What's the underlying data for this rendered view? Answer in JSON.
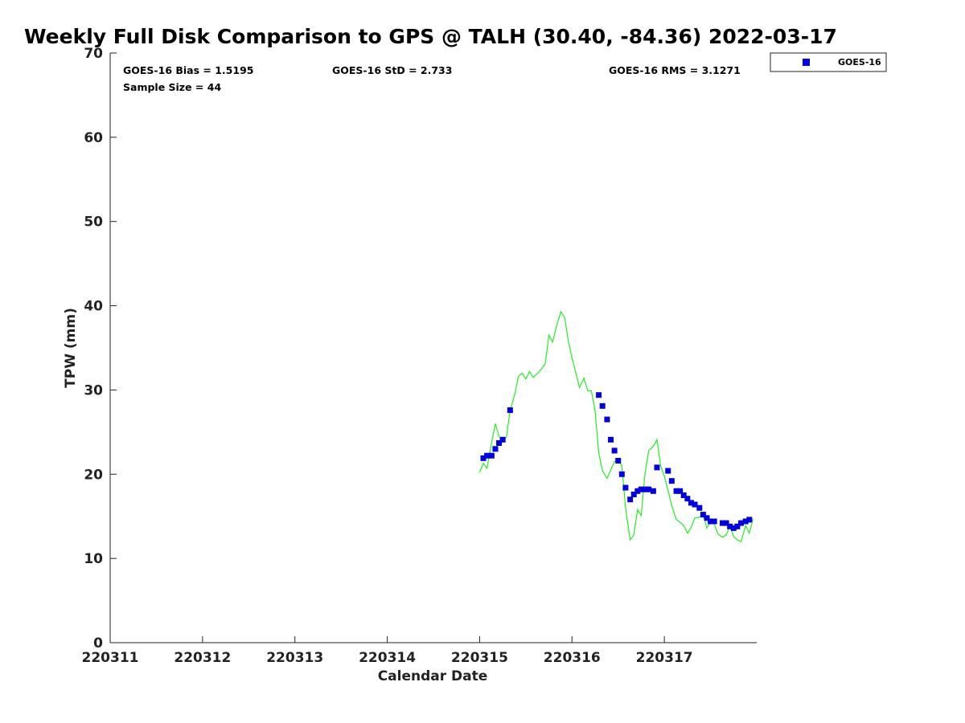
{
  "chart_data": {
    "type": "scatter",
    "title": "Weekly Full Disk Comparison to GPS @ TALH (30.40, -84.36) 2022-03-17",
    "xlabel": "Calendar Date",
    "ylabel": "TPW (mm)",
    "xlim": [
      220311,
      220318
    ],
    "ylim": [
      0,
      70
    ],
    "yticks": [
      0,
      10,
      20,
      30,
      40,
      50,
      60,
      70
    ],
    "xticks": [
      220311,
      220312,
      220313,
      220314,
      220315,
      220316,
      220317
    ],
    "grid": false,
    "legend_position": "top-right outside",
    "stats": {
      "bias": "GOES-16 Bias = 1.5195",
      "std": "GOES-16 StD = 2.733",
      "rms": "GOES-16 RMS = 3.1271",
      "sample_size": "Sample Size = 44"
    },
    "series": [
      {
        "name": "GOES-16",
        "kind": "scatter",
        "marker": "square",
        "color": "#0000dd",
        "points": [
          [
            220315.04,
            21.9
          ],
          [
            220315.08,
            22.2
          ],
          [
            220315.13,
            22.2
          ],
          [
            220315.17,
            23.0
          ],
          [
            220315.21,
            23.7
          ],
          [
            220315.25,
            24.1
          ],
          [
            220315.33,
            27.6
          ],
          [
            220316.29,
            29.4
          ],
          [
            220316.33,
            28.1
          ],
          [
            220316.38,
            26.5
          ],
          [
            220316.42,
            24.1
          ],
          [
            220316.46,
            22.8
          ],
          [
            220316.5,
            21.6
          ],
          [
            220316.54,
            20.0
          ],
          [
            220316.58,
            18.4
          ],
          [
            220316.63,
            17.0
          ],
          [
            220316.67,
            17.6
          ],
          [
            220316.71,
            18.0
          ],
          [
            220316.75,
            18.2
          ],
          [
            220316.79,
            18.2
          ],
          [
            220316.83,
            18.2
          ],
          [
            220316.88,
            18.0
          ],
          [
            220316.92,
            20.8
          ],
          [
            220317.04,
            20.4
          ],
          [
            220317.08,
            19.2
          ],
          [
            220317.13,
            18.0
          ],
          [
            220317.17,
            18.0
          ],
          [
            220317.21,
            17.5
          ],
          [
            220317.25,
            17.1
          ],
          [
            220317.29,
            16.6
          ],
          [
            220317.33,
            16.4
          ],
          [
            220317.38,
            16.0
          ],
          [
            220317.42,
            15.2
          ],
          [
            220317.46,
            14.8
          ],
          [
            220317.5,
            14.4
          ],
          [
            220317.54,
            14.4
          ],
          [
            220317.63,
            14.2
          ],
          [
            220317.67,
            14.2
          ],
          [
            220317.71,
            13.8
          ],
          [
            220317.75,
            13.6
          ],
          [
            220317.79,
            13.8
          ],
          [
            220317.83,
            14.2
          ],
          [
            220317.88,
            14.4
          ],
          [
            220317.92,
            14.6
          ]
        ]
      },
      {
        "kind": "line",
        "color": "#22ee22",
        "points": [
          [
            220315.0,
            20.2
          ],
          [
            220315.04,
            21.3
          ],
          [
            220315.08,
            20.7
          ],
          [
            220315.13,
            23.8
          ],
          [
            220315.17,
            26.0
          ],
          [
            220315.21,
            24.5
          ],
          [
            220315.25,
            24.0
          ],
          [
            220315.29,
            24.4
          ],
          [
            220315.33,
            27.5
          ],
          [
            220315.38,
            29.5
          ],
          [
            220315.42,
            31.6
          ],
          [
            220315.46,
            32.0
          ],
          [
            220315.5,
            31.3
          ],
          [
            220315.54,
            32.2
          ],
          [
            220315.58,
            31.5
          ],
          [
            220315.63,
            32.0
          ],
          [
            220315.67,
            32.5
          ],
          [
            220315.71,
            33.1
          ],
          [
            220315.75,
            36.5
          ],
          [
            220315.79,
            35.7
          ],
          [
            220315.83,
            37.5
          ],
          [
            220315.88,
            39.3
          ],
          [
            220315.92,
            38.6
          ],
          [
            220315.96,
            35.8
          ],
          [
            220316.0,
            33.8
          ],
          [
            220316.04,
            32.1
          ],
          [
            220316.08,
            30.3
          ],
          [
            220316.13,
            31.4
          ],
          [
            220316.17,
            29.9
          ],
          [
            220316.21,
            29.9
          ],
          [
            220316.25,
            27.5
          ],
          [
            220316.29,
            22.5
          ],
          [
            220316.33,
            20.4
          ],
          [
            220316.38,
            19.5
          ],
          [
            220316.42,
            20.5
          ],
          [
            220316.46,
            21.5
          ],
          [
            220316.5,
            21.7
          ],
          [
            220316.54,
            21.0
          ],
          [
            220316.58,
            16.0
          ],
          [
            220316.63,
            12.2
          ],
          [
            220316.67,
            12.8
          ],
          [
            220316.71,
            15.8
          ],
          [
            220316.75,
            15.1
          ],
          [
            220316.79,
            20.0
          ],
          [
            220316.83,
            22.8
          ],
          [
            220316.88,
            23.3
          ],
          [
            220316.92,
            24.1
          ],
          [
            220316.96,
            21.0
          ],
          [
            220317.0,
            19.8
          ],
          [
            220317.04,
            18.1
          ],
          [
            220317.08,
            16.3
          ],
          [
            220317.13,
            14.6
          ],
          [
            220317.17,
            14.3
          ],
          [
            220317.21,
            13.9
          ],
          [
            220317.25,
            13.0
          ],
          [
            220317.29,
            13.7
          ],
          [
            220317.33,
            14.8
          ],
          [
            220317.38,
            14.9
          ],
          [
            220317.42,
            15.2
          ],
          [
            220317.46,
            13.6
          ],
          [
            220317.5,
            14.3
          ],
          [
            220317.54,
            14.1
          ],
          [
            220317.58,
            12.9
          ],
          [
            220317.63,
            12.5
          ],
          [
            220317.67,
            12.8
          ],
          [
            220317.71,
            13.8
          ],
          [
            220317.75,
            12.6
          ],
          [
            220317.79,
            12.2
          ],
          [
            220317.83,
            12.0
          ],
          [
            220317.88,
            13.9
          ],
          [
            220317.92,
            13.0
          ],
          [
            220317.96,
            14.7
          ]
        ]
      }
    ]
  }
}
